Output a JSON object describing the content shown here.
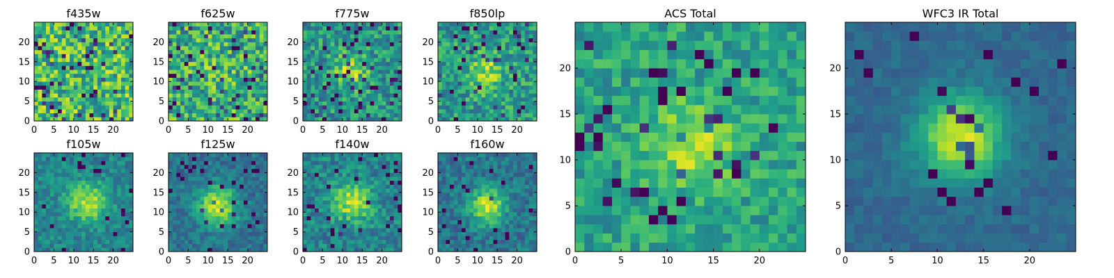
{
  "chart_data": [
    {
      "type": "heatmap",
      "title": "f435w",
      "xticks": [
        "0",
        "5",
        "10",
        "15",
        "20"
      ],
      "yticks": [
        "0",
        "5",
        "10",
        "15",
        "20"
      ],
      "xlim": [
        0,
        25
      ],
      "ylim": [
        0,
        25
      ],
      "grid": false,
      "colormap": "viridis",
      "source": {
        "cx": 12,
        "cy": 12,
        "amp": 0.0,
        "sigma": 4.0,
        "noise": 0.28,
        "base": 0.68,
        "dark_fraction": 0.1
      }
    },
    {
      "type": "heatmap",
      "title": "f625w",
      "xticks": [
        "0",
        "5",
        "10",
        "15",
        "20"
      ],
      "yticks": [
        "0",
        "5",
        "10",
        "15",
        "20"
      ],
      "xlim": [
        0,
        25
      ],
      "ylim": [
        0,
        25
      ],
      "grid": false,
      "colormap": "viridis",
      "source": {
        "cx": 12,
        "cy": 12,
        "amp": 0.05,
        "sigma": 4.0,
        "noise": 0.28,
        "base": 0.62,
        "dark_fraction": 0.1
      }
    },
    {
      "type": "heatmap",
      "title": "f775w",
      "xticks": [
        "0",
        "5",
        "10",
        "15",
        "20"
      ],
      "yticks": [
        "0",
        "5",
        "10",
        "15",
        "20"
      ],
      "xlim": [
        0,
        25
      ],
      "ylim": [
        0,
        25
      ],
      "grid": false,
      "colormap": "viridis",
      "source": {
        "cx": 12,
        "cy": 12,
        "amp": 0.35,
        "sigma": 3.0,
        "noise": 0.22,
        "base": 0.52,
        "dark_fraction": 0.07
      }
    },
    {
      "type": "heatmap",
      "title": "f850lp",
      "xticks": [
        "0",
        "5",
        "10",
        "15",
        "20"
      ],
      "yticks": [
        "0",
        "5",
        "10",
        "15",
        "20"
      ],
      "xlim": [
        0,
        25
      ],
      "ylim": [
        0,
        25
      ],
      "grid": false,
      "colormap": "viridis",
      "source": {
        "cx": 12,
        "cy": 12,
        "amp": 0.3,
        "sigma": 3.0,
        "noise": 0.22,
        "base": 0.55,
        "dark_fraction": 0.07
      }
    },
    {
      "type": "heatmap",
      "title": "f105w",
      "xticks": [
        "0",
        "5",
        "10",
        "15",
        "20"
      ],
      "yticks": [
        "0",
        "5",
        "10",
        "15",
        "20"
      ],
      "xlim": [
        0,
        25
      ],
      "ylim": [
        0,
        25
      ],
      "grid": false,
      "colormap": "viridis",
      "source": {
        "cx": 13,
        "cy": 12,
        "amp": 0.45,
        "sigma": 3.5,
        "noise": 0.14,
        "base": 0.45,
        "dark_fraction": 0.04
      }
    },
    {
      "type": "heatmap",
      "title": "f125w",
      "xticks": [
        "0",
        "5",
        "10",
        "15",
        "20"
      ],
      "yticks": [
        "0",
        "5",
        "10",
        "15",
        "20"
      ],
      "xlim": [
        0,
        25
      ],
      "ylim": [
        0,
        25
      ],
      "grid": false,
      "colormap": "viridis",
      "source": {
        "cx": 12,
        "cy": 11,
        "amp": 0.55,
        "sigma": 3.5,
        "noise": 0.12,
        "base": 0.38,
        "dark_fraction": 0.05
      }
    },
    {
      "type": "heatmap",
      "title": "f140w",
      "xticks": [
        "0",
        "5",
        "10",
        "15",
        "20"
      ],
      "yticks": [
        "0",
        "5",
        "10",
        "15",
        "20"
      ],
      "xlim": [
        0,
        25
      ],
      "ylim": [
        0,
        25
      ],
      "grid": false,
      "colormap": "viridis",
      "source": {
        "cx": 12,
        "cy": 12,
        "amp": 0.45,
        "sigma": 3.5,
        "noise": 0.16,
        "base": 0.45,
        "dark_fraction": 0.05
      }
    },
    {
      "type": "heatmap",
      "title": "f160w",
      "xticks": [
        "0",
        "5",
        "10",
        "15",
        "20"
      ],
      "yticks": [
        "0",
        "5",
        "10",
        "15",
        "20"
      ],
      "xlim": [
        0,
        25
      ],
      "ylim": [
        0,
        25
      ],
      "grid": false,
      "colormap": "viridis",
      "source": {
        "cx": 12,
        "cy": 11,
        "amp": 0.55,
        "sigma": 3.0,
        "noise": 0.14,
        "base": 0.4,
        "dark_fraction": 0.05
      }
    },
    {
      "type": "heatmap",
      "title": "ACS Total",
      "xticks": [
        "0",
        "5",
        "10",
        "15",
        "20"
      ],
      "yticks": [
        "0",
        "5",
        "10",
        "15",
        "20"
      ],
      "xlim": [
        0,
        25
      ],
      "ylim": [
        0,
        25
      ],
      "grid": false,
      "colormap": "viridis",
      "source": {
        "cx": 12,
        "cy": 11,
        "amp": 0.35,
        "sigma": 3.0,
        "noise": 0.16,
        "base": 0.58,
        "dark_fraction": 0.05
      }
    },
    {
      "type": "heatmap",
      "title": "WFC3 IR Total",
      "xticks": [
        "0",
        "5",
        "10",
        "15",
        "20"
      ],
      "yticks": [
        "0",
        "5",
        "10",
        "15",
        "20"
      ],
      "xlim": [
        0,
        25
      ],
      "ylim": [
        0,
        25
      ],
      "grid": false,
      "colormap": "viridis",
      "source": {
        "cx": 12,
        "cy": 12,
        "amp": 0.62,
        "sigma": 3.2,
        "noise": 0.06,
        "base": 0.34,
        "dark_fraction": 0.03
      }
    }
  ],
  "colors": {
    "background": "#ffffff",
    "axes": "#000000"
  }
}
